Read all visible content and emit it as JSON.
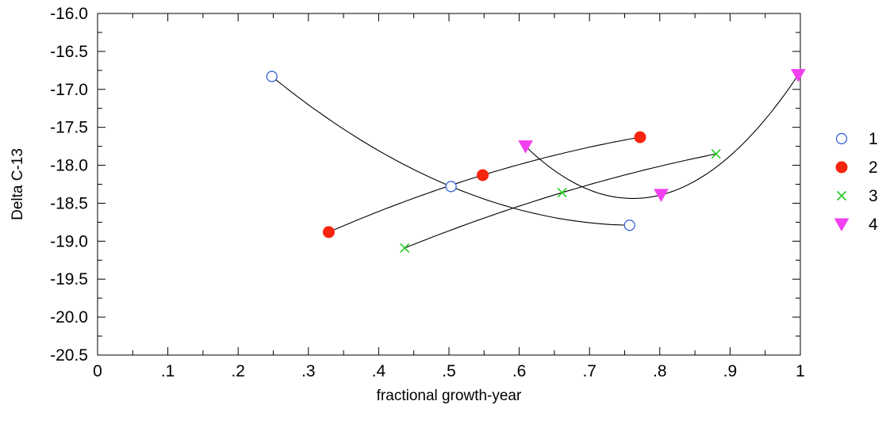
{
  "chart_data": {
    "type": "scatter",
    "title": "",
    "xlabel": "fractional growth-year",
    "ylabel": "Delta C-13",
    "xlim": [
      0,
      1
    ],
    "ylim": [
      -20.5,
      -16.0
    ],
    "x_ticks": [
      0,
      0.1,
      0.2,
      0.3,
      0.4,
      0.5,
      0.6,
      0.7,
      0.8,
      0.9,
      1
    ],
    "x_tick_labels": [
      "0",
      ".1",
      ".2",
      ".3",
      ".4",
      ".5",
      ".6",
      ".7",
      ".8",
      ".9",
      "1"
    ],
    "y_ticks": [
      -16.0,
      -16.5,
      -17.0,
      -17.5,
      -18.0,
      -18.5,
      -19.0,
      -19.5,
      -20.0,
      -20.5
    ],
    "y_tick_labels": [
      "-16.0",
      "-16.5",
      "-17.0",
      "-17.5",
      "-18.0",
      "-18.5",
      "-19.0",
      "-19.5",
      "-20.0",
      "-20.5"
    ],
    "grid": false,
    "legend_position": "right",
    "series": [
      {
        "name": "1",
        "marker": "open-circle",
        "color": "#2a56d6",
        "points": [
          [
            0.248,
            -16.83
          ],
          [
            0.503,
            -18.28
          ],
          [
            0.757,
            -18.79
          ]
        ]
      },
      {
        "name": "2",
        "marker": "filled-circle",
        "color": "#f5250f",
        "points": [
          [
            0.329,
            -18.88
          ],
          [
            0.548,
            -18.13
          ],
          [
            0.772,
            -17.63
          ]
        ]
      },
      {
        "name": "3",
        "marker": "x",
        "color": "#22cc22",
        "points": [
          [
            0.437,
            -19.09
          ],
          [
            0.661,
            -18.36
          ],
          [
            0.88,
            -17.85
          ]
        ]
      },
      {
        "name": "4",
        "marker": "down-triangle",
        "color": "#f040f0",
        "points": [
          [
            0.609,
            -17.75
          ],
          [
            0.802,
            -18.39
          ],
          [
            0.997,
            -16.81
          ]
        ]
      }
    ]
  }
}
